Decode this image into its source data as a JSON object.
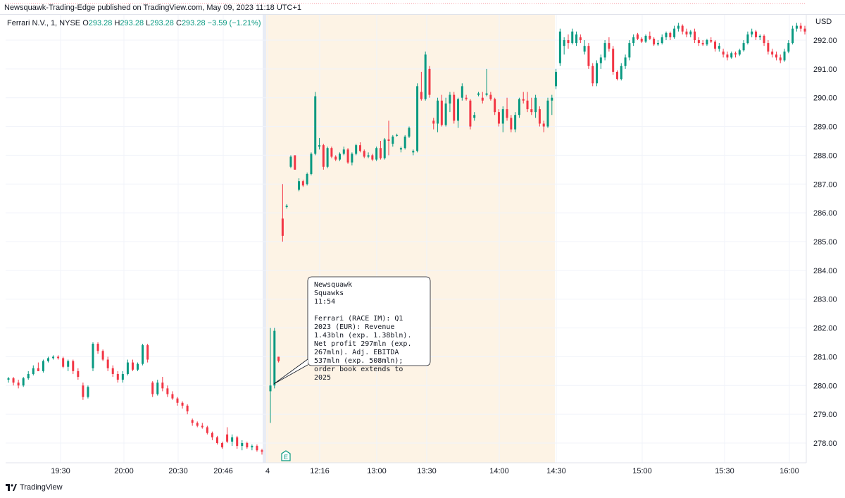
{
  "header": {
    "published": "Newsquawk-Trading-Edge published on TradingView.com, May 09, 2023 11:18 UTC+1"
  },
  "legend": {
    "symbol": "Ferrari N.V., 1, NYSE",
    "o_label": "O",
    "o": "293.28",
    "h_label": "H",
    "h": "293.28",
    "l_label": "L",
    "l": "293.28",
    "c_label": "C",
    "c": "293.28",
    "change": "−3.59 (−1.21%)"
  },
  "currency": "USD",
  "callout": {
    "source": "Newsquawk\nSquawks",
    "time": "11:54",
    "text": "Ferrari (RACE IM): Q1 2023 (EUR): Revenue 1.43bln (exp. 1.38bln). Net profit 297mln (exp. 267mln). Adj. EBITDA 537mln (exp. 508mln); order book extends to 2025"
  },
  "earnings_badge": "E",
  "footer": {
    "brand": "TradingView"
  },
  "colors": {
    "up": "#089981",
    "down": "#f23645",
    "session": "#fdf3e5",
    "grid": "#f0f3fa"
  },
  "chart_data": {
    "type": "candlestick",
    "y_ticks": [
      "278.00",
      "279.00",
      "280.00",
      "281.00",
      "282.00",
      "283.00",
      "284.00",
      "285.00",
      "286.00",
      "287.00",
      "288.00",
      "289.00",
      "290.00",
      "291.00",
      "292.00"
    ],
    "x_ticks": [
      "19:30",
      "20:00",
      "20:30",
      "20:46",
      "4",
      "12:16",
      "13:00",
      "13:30",
      "14:00",
      "14:30",
      "15:00",
      "15:30",
      "16:00"
    ],
    "ylim": [
      277.3,
      292.9
    ],
    "last_price": 293.28,
    "candles": [
      [
        280.2,
        280.3,
        280.1,
        280.25
      ],
      [
        280.25,
        280.3,
        280.0,
        280.1
      ],
      [
        280.1,
        280.2,
        279.9,
        280.0
      ],
      [
        280.0,
        280.3,
        279.95,
        280.25
      ],
      [
        280.25,
        280.5,
        280.2,
        280.4
      ],
      [
        280.4,
        280.7,
        280.35,
        280.6
      ],
      [
        280.6,
        280.8,
        280.5,
        280.5
      ],
      [
        280.5,
        280.9,
        280.45,
        280.85
      ],
      [
        280.85,
        281.0,
        280.8,
        280.95
      ],
      [
        280.95,
        281.05,
        280.9,
        281.0
      ],
      [
        281.0,
        281.05,
        280.9,
        280.95
      ],
      [
        280.95,
        281.0,
        280.6,
        280.65
      ],
      [
        280.65,
        280.9,
        280.5,
        280.85
      ],
      [
        280.85,
        280.9,
        280.4,
        280.5
      ],
      [
        280.5,
        280.6,
        280.2,
        280.3
      ],
      [
        280.0,
        280.1,
        279.5,
        279.6
      ],
      [
        279.6,
        280.0,
        279.55,
        279.95
      ],
      [
        280.6,
        281.5,
        280.5,
        281.45
      ],
      [
        281.45,
        281.5,
        281.1,
        281.2
      ],
      [
        281.2,
        281.25,
        280.85,
        280.9
      ],
      [
        280.9,
        281.0,
        280.5,
        280.6
      ],
      [
        280.6,
        280.7,
        280.3,
        280.4
      ],
      [
        280.4,
        280.5,
        280.1,
        280.2
      ],
      [
        280.2,
        280.5,
        280.1,
        280.4
      ],
      [
        280.4,
        280.9,
        280.35,
        280.8
      ],
      [
        280.8,
        280.9,
        280.5,
        280.55
      ],
      [
        280.55,
        280.8,
        280.5,
        280.75
      ],
      [
        280.75,
        281.45,
        280.7,
        281.4
      ],
      [
        281.4,
        281.45,
        280.8,
        280.9
      ],
      [
        280.1,
        280.15,
        279.6,
        279.7
      ],
      [
        279.7,
        280.2,
        279.65,
        280.1
      ],
      [
        280.1,
        280.3,
        279.8,
        279.9
      ],
      [
        279.9,
        280.0,
        279.6,
        279.7
      ],
      [
        279.7,
        279.8,
        279.5,
        279.55
      ],
      [
        279.55,
        279.6,
        279.3,
        279.4
      ],
      [
        279.4,
        279.45,
        279.2,
        279.3
      ],
      [
        279.3,
        279.35,
        279.0,
        279.1
      ],
      [
        278.8,
        278.85,
        278.6,
        278.7
      ],
      [
        278.7,
        278.75,
        278.55,
        278.6
      ],
      [
        278.6,
        278.7,
        278.5,
        278.55
      ],
      [
        278.55,
        278.6,
        278.3,
        278.35
      ],
      [
        278.35,
        278.4,
        278.1,
        278.2
      ],
      [
        278.2,
        278.25,
        277.95,
        278.0
      ],
      [
        278.0,
        278.05,
        277.8,
        277.85
      ],
      [
        278.3,
        278.55,
        278.0,
        278.05
      ],
      [
        278.05,
        278.3,
        277.9,
        278.2
      ],
      [
        278.2,
        278.25,
        277.8,
        277.9
      ],
      [
        277.9,
        278.1,
        277.75,
        278.0
      ],
      [
        278.0,
        278.05,
        277.8,
        277.85
      ],
      [
        277.85,
        277.95,
        277.75,
        277.9
      ],
      [
        277.9,
        277.95,
        277.7,
        277.75
      ],
      [
        277.75,
        277.8,
        277.6,
        277.7
      ],
      [
        279.8,
        282.0,
        278.7,
        280.0
      ],
      [
        280.0,
        282.0,
        279.9,
        281.9
      ],
      [
        281.0,
        281.0,
        280.8,
        280.85
      ],
      [
        285.8,
        287.0,
        285.0,
        285.2
      ],
      [
        286.2,
        286.3,
        286.15,
        286.25
      ],
      [
        287.6,
        288.0,
        287.55,
        287.95
      ],
      [
        288.0,
        288.0,
        287.5,
        287.5
      ],
      [
        286.8,
        287.2,
        286.75,
        287.1
      ],
      [
        287.1,
        287.15,
        286.9,
        286.95
      ],
      [
        287.0,
        287.4,
        286.95,
        287.35
      ],
      [
        287.35,
        288.1,
        287.3,
        288.05
      ],
      [
        288.05,
        290.2,
        288.0,
        290.05
      ],
      [
        288.3,
        288.6,
        288.2,
        288.35
      ],
      [
        288.35,
        288.4,
        287.5,
        287.6
      ],
      [
        287.6,
        288.3,
        287.55,
        288.25
      ],
      [
        288.25,
        288.3,
        287.9,
        287.95
      ],
      [
        287.95,
        288.0,
        287.8,
        287.85
      ],
      [
        287.85,
        288.1,
        287.8,
        288.05
      ],
      [
        288.05,
        288.3,
        288.0,
        288.2
      ],
      [
        288.2,
        288.25,
        287.7,
        287.75
      ],
      [
        287.75,
        288.1,
        287.65,
        288.05
      ],
      [
        288.05,
        288.4,
        288.0,
        288.35
      ],
      [
        288.35,
        288.45,
        288.1,
        288.15
      ],
      [
        288.15,
        288.2,
        287.9,
        287.95
      ],
      [
        287.95,
        288.1,
        287.9,
        288.0
      ],
      [
        288.0,
        288.05,
        287.8,
        287.85
      ],
      [
        287.85,
        288.3,
        287.8,
        288.25
      ],
      [
        288.25,
        288.5,
        287.85,
        287.9
      ],
      [
        287.9,
        288.6,
        287.85,
        288.55
      ],
      [
        288.55,
        289.2,
        288.0,
        288.5
      ],
      [
        288.4,
        288.7,
        288.3,
        288.65
      ],
      [
        288.7,
        288.75,
        288.65,
        288.7
      ],
      [
        288.2,
        288.3,
        288.1,
        288.25
      ],
      [
        288.25,
        288.7,
        288.2,
        288.65
      ],
      [
        288.65,
        289.0,
        288.6,
        288.95
      ],
      [
        288.1,
        288.2,
        288.0,
        288.15
      ],
      [
        288.15,
        290.5,
        288.1,
        290.4
      ],
      [
        290.2,
        290.9,
        289.9,
        289.95
      ],
      [
        289.95,
        291.6,
        289.9,
        291.5
      ],
      [
        291.0,
        291.1,
        290.0,
        290.1
      ],
      [
        289.2,
        289.3,
        288.9,
        289.1
      ],
      [
        289.1,
        290.0,
        288.8,
        289.9
      ],
      [
        289.9,
        290.1,
        289.0,
        289.05
      ],
      [
        289.05,
        290.0,
        289.0,
        289.8
      ],
      [
        289.8,
        290.2,
        289.5,
        290.1
      ],
      [
        290.1,
        290.2,
        289.1,
        289.2
      ],
      [
        289.2,
        290.0,
        288.95,
        289.95
      ],
      [
        290.0,
        290.5,
        289.9,
        290.4
      ],
      [
        290.0,
        290.1,
        289.9,
        289.95
      ],
      [
        289.9,
        289.95,
        288.9,
        289.0
      ],
      [
        289.3,
        289.5,
        289.2,
        289.4
      ],
      [
        290.1,
        290.2,
        290.05,
        290.15
      ],
      [
        290.0,
        290.2,
        289.8,
        289.9
      ],
      [
        290.1,
        291.0,
        290.05,
        290.15
      ],
      [
        290.1,
        290.2,
        289.9,
        289.95
      ],
      [
        289.95,
        290.0,
        289.4,
        289.5
      ],
      [
        289.5,
        289.6,
        289.0,
        289.1
      ],
      [
        289.1,
        289.7,
        288.8,
        289.6
      ],
      [
        289.6,
        290.0,
        289.2,
        289.3
      ],
      [
        289.3,
        289.4,
        288.8,
        288.9
      ],
      [
        288.9,
        289.5,
        288.8,
        289.4
      ],
      [
        289.4,
        290.0,
        289.3,
        289.95
      ],
      [
        289.95,
        290.2,
        289.8,
        289.9
      ],
      [
        289.9,
        290.2,
        289.5,
        289.6
      ],
      [
        289.6,
        290.0,
        289.4,
        289.5
      ],
      [
        289.5,
        290.1,
        289.3,
        290.0
      ],
      [
        289.6,
        289.7,
        289.0,
        289.1
      ],
      [
        289.1,
        289.2,
        288.8,
        289.0
      ],
      [
        289.0,
        290.0,
        288.95,
        289.9
      ],
      [
        289.9,
        290.1,
        289.4,
        290.0
      ],
      [
        290.4,
        291.0,
        290.3,
        290.9
      ],
      [
        291.2,
        292.4,
        291.1,
        292.3
      ],
      [
        291.8,
        292.1,
        291.5,
        292.0
      ],
      [
        292.0,
        292.2,
        291.7,
        291.9
      ],
      [
        291.9,
        292.4,
        291.85,
        292.3
      ],
      [
        291.9,
        292.3,
        291.8,
        292.2
      ],
      [
        292.1,
        292.2,
        291.9,
        292.0
      ],
      [
        291.6,
        292.0,
        291.5,
        291.8
      ],
      [
        291.8,
        291.9,
        291.0,
        291.1
      ],
      [
        291.1,
        291.2,
        290.4,
        290.5
      ],
      [
        290.5,
        291.3,
        290.4,
        291.2
      ],
      [
        291.2,
        291.5,
        291.0,
        291.4
      ],
      [
        291.4,
        292.0,
        291.3,
        291.9
      ],
      [
        291.9,
        292.1,
        291.6,
        291.7
      ],
      [
        291.7,
        291.8,
        290.8,
        290.9
      ],
      [
        290.9,
        290.95,
        290.6,
        290.65
      ],
      [
        290.65,
        291.2,
        290.6,
        291.1
      ],
      [
        291.1,
        291.5,
        291.0,
        291.4
      ],
      [
        291.4,
        292.0,
        291.3,
        291.9
      ],
      [
        291.9,
        292.2,
        291.8,
        292.1
      ],
      [
        292.2,
        292.25,
        292.0,
        292.05
      ],
      [
        292.05,
        292.1,
        291.9,
        291.95
      ],
      [
        291.95,
        292.2,
        291.9,
        292.15
      ],
      [
        292.15,
        292.3,
        292.0,
        292.05
      ],
      [
        292.05,
        292.1,
        291.8,
        291.85
      ],
      [
        291.85,
        292.0,
        291.8,
        291.9
      ],
      [
        291.9,
        292.2,
        291.85,
        292.1
      ],
      [
        292.1,
        292.3,
        292.0,
        292.25
      ],
      [
        292.25,
        292.3,
        292.0,
        292.1
      ],
      [
        292.1,
        292.5,
        292.05,
        292.4
      ],
      [
        292.4,
        292.6,
        292.3,
        292.5
      ],
      [
        292.5,
        292.55,
        292.2,
        292.3
      ],
      [
        292.3,
        292.4,
        292.1,
        292.2
      ],
      [
        292.2,
        292.35,
        292.1,
        292.3
      ],
      [
        292.3,
        292.4,
        291.9,
        292.0
      ],
      [
        292.0,
        292.1,
        291.8,
        291.9
      ],
      [
        291.9,
        292.0,
        291.8,
        291.85
      ],
      [
        291.85,
        292.05,
        291.8,
        292.0
      ],
      [
        292.0,
        292.1,
        291.9,
        291.95
      ],
      [
        291.95,
        292.0,
        291.6,
        291.7
      ],
      [
        291.7,
        291.9,
        291.6,
        291.8
      ],
      [
        291.6,
        291.7,
        291.4,
        291.5
      ],
      [
        291.5,
        291.6,
        291.3,
        291.4
      ],
      [
        291.4,
        291.6,
        291.35,
        291.55
      ],
      [
        291.55,
        291.6,
        291.4,
        291.5
      ],
      [
        291.5,
        291.7,
        291.45,
        291.65
      ],
      [
        291.65,
        292.0,
        291.6,
        291.9
      ],
      [
        291.9,
        292.3,
        291.85,
        292.2
      ],
      [
        292.2,
        292.4,
        292.1,
        292.3
      ],
      [
        292.3,
        292.35,
        292.0,
        292.1
      ],
      [
        292.1,
        292.2,
        292.0,
        292.15
      ],
      [
        292.15,
        292.2,
        291.8,
        291.9
      ],
      [
        291.9,
        292.0,
        291.5,
        291.6
      ],
      [
        291.6,
        291.7,
        291.4,
        291.5
      ],
      [
        291.5,
        291.6,
        291.3,
        291.4
      ],
      [
        291.4,
        291.5,
        291.2,
        291.3
      ],
      [
        291.3,
        291.7,
        291.25,
        291.6
      ],
      [
        291.6,
        292.0,
        291.55,
        291.9
      ],
      [
        291.9,
        292.5,
        291.85,
        292.4
      ],
      [
        292.4,
        292.6,
        292.3,
        292.5
      ],
      [
        292.5,
        292.6,
        292.3,
        292.4
      ],
      [
        292.4,
        292.5,
        292.2,
        292.3
      ]
    ]
  }
}
